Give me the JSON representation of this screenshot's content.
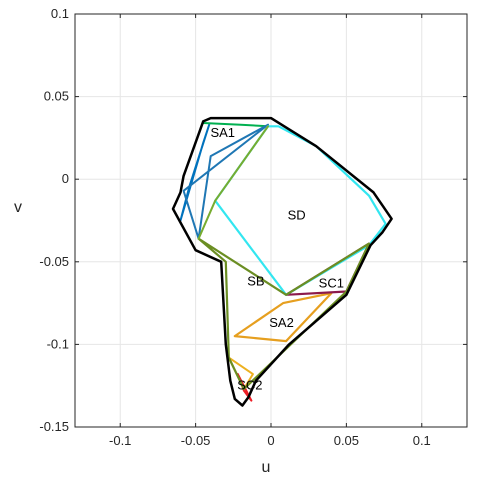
{
  "chart_data": {
    "type": "line",
    "xlabel": "u",
    "ylabel": "v",
    "xlim": [
      -0.13,
      0.13
    ],
    "ylim": [
      -0.15,
      0.1
    ],
    "x_ticks": [
      -0.1,
      -0.05,
      0,
      0.05,
      0.1
    ],
    "x_tick_labels": [
      "-0.1",
      "-0.05",
      "0",
      "0.05",
      "0.1"
    ],
    "y_ticks": [
      -0.15,
      -0.1,
      -0.05,
      0,
      0.05,
      0.1
    ],
    "y_tick_labels": [
      "-0.15",
      "-0.1",
      "-0.05",
      "0",
      "0.05",
      "0.1"
    ],
    "grid": true,
    "series": [
      {
        "color": "#ED1C24",
        "width": 2,
        "x": [
          -0.022,
          -0.018,
          -0.013,
          -0.022
        ],
        "y": [
          -0.118,
          -0.128,
          -0.134,
          -0.118
        ]
      },
      {
        "color": "#0072BD",
        "width": 2,
        "x": [
          -0.06,
          -0.045,
          -0.041,
          -0.054,
          -0.06
        ],
        "y": [
          -0.025,
          0.022,
          0.033,
          -0.004,
          -0.025
        ]
      },
      {
        "color": "#00B050",
        "width": 2,
        "x": [
          -0.045,
          -0.02,
          -0.002
        ],
        "y": [
          0.034,
          0.033,
          0.032
        ]
      },
      {
        "color": "#1F77B4",
        "width": 2,
        "x": [
          -0.058,
          -0.048,
          -0.04,
          -0.002,
          -0.058
        ],
        "y": [
          -0.007,
          -0.036,
          0.014,
          0.033,
          -0.007
        ]
      },
      {
        "color": "#E69F1F",
        "width": 2.2,
        "x": [
          -0.024,
          0.01,
          0.04,
          0.008,
          -0.024
        ],
        "y": [
          -0.095,
          -0.098,
          -0.069,
          -0.075,
          -0.095
        ]
      },
      {
        "color": "#8C1A4B",
        "width": 2.2,
        "x": [
          0.01,
          0.05,
          0.065,
          0.01
        ],
        "y": [
          -0.07,
          -0.068,
          -0.039,
          -0.07
        ]
      },
      {
        "color": "#EDB120",
        "width": 2,
        "x": [
          -0.028,
          -0.018,
          -0.012,
          -0.028
        ],
        "y": [
          -0.108,
          -0.127,
          -0.118,
          -0.108
        ]
      },
      {
        "color": "#33E6F0",
        "width": 2.2,
        "x": [
          -0.002,
          0.005,
          0.03,
          0.065,
          0.076,
          0.065,
          0.01,
          -0.037,
          -0.002
        ],
        "y": [
          0.032,
          0.032,
          0.02,
          -0.01,
          -0.027,
          -0.04,
          -0.07,
          -0.013,
          0.032
        ]
      },
      {
        "color": "#6B8E23",
        "width": 2.2,
        "x": [
          -0.048,
          -0.03,
          -0.028,
          -0.018,
          0.05,
          0.065,
          0.01,
          -0.048
        ],
        "y": [
          -0.036,
          -0.05,
          -0.108,
          -0.127,
          -0.068,
          -0.039,
          -0.07,
          -0.036
        ]
      },
      {
        "color": "#77AC30",
        "width": 2,
        "x": [
          -0.048,
          -0.037,
          -0.002
        ],
        "y": [
          -0.036,
          -0.013,
          0.032
        ]
      },
      {
        "color": "#000000",
        "width": 2.5,
        "x": [
          -0.045,
          -0.04,
          0.0,
          0.03,
          0.068,
          0.08,
          0.074,
          0.066,
          0.05,
          0.012,
          -0.01,
          -0.015,
          -0.019,
          -0.024,
          -0.027,
          -0.03,
          -0.033,
          -0.05,
          -0.065,
          -0.06,
          -0.058,
          -0.045
        ],
        "y": [
          0.035,
          0.037,
          0.037,
          0.02,
          -0.008,
          -0.024,
          -0.032,
          -0.04,
          -0.07,
          -0.1,
          -0.122,
          -0.132,
          -0.137,
          -0.133,
          -0.122,
          -0.1,
          -0.05,
          -0.043,
          -0.018,
          -0.008,
          0.002,
          0.035
        ]
      }
    ],
    "annotations": [
      {
        "text": "SA1",
        "x": -0.032,
        "y": 0.028
      },
      {
        "text": "SD",
        "x": 0.017,
        "y": -0.022
      },
      {
        "text": "SB",
        "x": -0.01,
        "y": -0.062
      },
      {
        "text": "SC1",
        "x": 0.04,
        "y": -0.063
      },
      {
        "text": "SA2",
        "x": 0.007,
        "y": -0.087
      },
      {
        "text": "SC2",
        "x": -0.014,
        "y": -0.125
      }
    ]
  }
}
